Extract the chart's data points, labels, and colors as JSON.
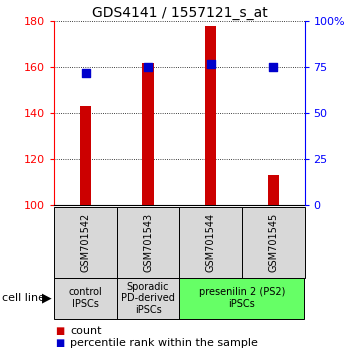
{
  "title": "GDS4141 / 1557121_s_at",
  "samples": [
    "GSM701542",
    "GSM701543",
    "GSM701544",
    "GSM701545"
  ],
  "counts": [
    143,
    162,
    178,
    113
  ],
  "count_base": 100,
  "percentile_ranks": [
    72,
    75,
    77,
    75
  ],
  "left_ylim": [
    100,
    180
  ],
  "right_ylim": [
    0,
    100
  ],
  "left_yticks": [
    100,
    120,
    140,
    160,
    180
  ],
  "right_yticks": [
    0,
    25,
    50,
    75,
    100
  ],
  "right_yticklabels": [
    "0",
    "25",
    "50",
    "75",
    "100%"
  ],
  "bar_color": "#cc0000",
  "dot_color": "#0000cc",
  "groups": [
    {
      "label": "control\nIPSCs",
      "start": 0,
      "end": 1,
      "color": "#d8d8d8"
    },
    {
      "label": "Sporadic\nPD-derived\niPSCs",
      "start": 1,
      "end": 2,
      "color": "#d8d8d8"
    },
    {
      "label": "presenilin 2 (PS2)\niPSCs",
      "start": 2,
      "end": 4,
      "color": "#66ff66"
    }
  ],
  "cell_line_label": "cell line",
  "legend_items": [
    {
      "color": "#cc0000",
      "label": "count"
    },
    {
      "color": "#0000cc",
      "label": "percentile rank within the sample"
    }
  ],
  "bar_width": 0.18,
  "dot_size": 28,
  "title_fontsize": 10,
  "tick_fontsize": 8,
  "sample_fontsize": 7,
  "group_fontsize": 7,
  "legend_fontsize": 8
}
